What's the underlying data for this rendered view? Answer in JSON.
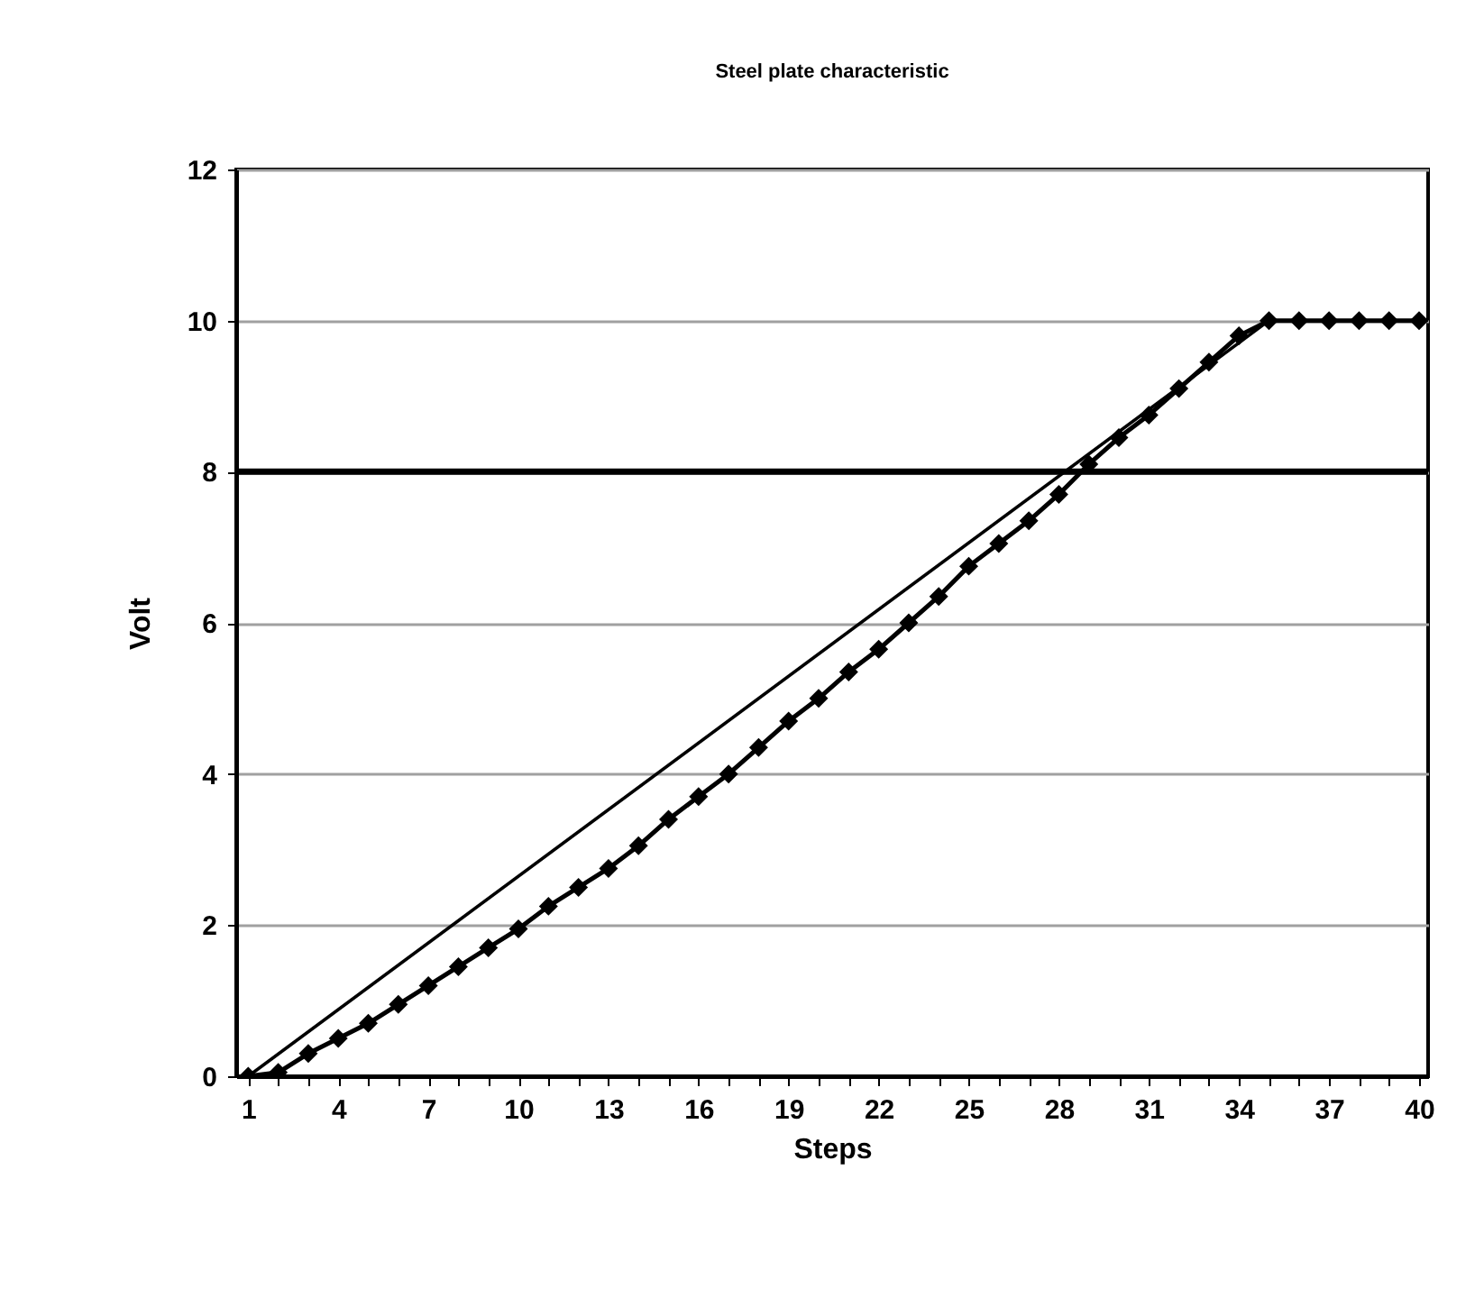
{
  "chart_data": {
    "type": "line",
    "title": "Steel plate characteristic",
    "xlabel": "Steps",
    "ylabel": "Volt",
    "x": [
      1,
      2,
      3,
      4,
      5,
      6,
      7,
      8,
      9,
      10,
      11,
      12,
      13,
      14,
      15,
      16,
      17,
      18,
      19,
      20,
      21,
      22,
      23,
      24,
      25,
      26,
      27,
      28,
      29,
      30,
      31,
      32,
      33,
      34,
      35,
      36,
      37,
      38,
      39,
      40
    ],
    "series": [
      {
        "color": "#000000",
        "marker": "diamond",
        "values": [
          0,
          0.05,
          0.3,
          0.5,
          0.7,
          0.95,
          1.2,
          1.45,
          1.7,
          1.95,
          2.25,
          2.5,
          2.75,
          3.05,
          3.4,
          3.7,
          4.0,
          4.35,
          4.7,
          5.0,
          5.35,
          5.65,
          6.0,
          6.35,
          6.75,
          7.05,
          7.35,
          7.7,
          8.1,
          8.45,
          8.75,
          9.1,
          9.45,
          9.8,
          10,
          10,
          10,
          10,
          10,
          10
        ]
      },
      {
        "color": "#000000",
        "marker": "none",
        "x": [
          1,
          35
        ],
        "values": [
          0,
          10
        ]
      }
    ],
    "xlim": [
      0.6,
      40.3
    ],
    "xticks": [
      1,
      {
        "value": 2,
        "label": null
      },
      {
        "value": 3,
        "label": null
      },
      4,
      {
        "value": 5,
        "label": null
      },
      {
        "value": 6,
        "label": null
      },
      7,
      {
        "value": 8,
        "label": null
      },
      {
        "value": 9,
        "label": null
      },
      10,
      {
        "value": 11,
        "label": null
      },
      {
        "value": 12,
        "label": null
      },
      13,
      {
        "value": 14,
        "label": null
      },
      {
        "value": 15,
        "label": null
      },
      16,
      {
        "value": 17,
        "label": null
      },
      {
        "value": 18,
        "label": null
      },
      19,
      {
        "value": 20,
        "label": null
      },
      {
        "value": 21,
        "label": null
      },
      22,
      {
        "value": 23,
        "label": null
      },
      {
        "value": 24,
        "label": null
      },
      25,
      {
        "value": 26,
        "label": null
      },
      {
        "value": 27,
        "label": null
      },
      28,
      {
        "value": 29,
        "label": null
      },
      {
        "value": 30,
        "label": null
      },
      31,
      {
        "value": 32,
        "label": null
      },
      {
        "value": 33,
        "label": null
      },
      34,
      {
        "value": 35,
        "label": null
      },
      {
        "value": 36,
        "label": null
      },
      37,
      {
        "value": 38,
        "label": null
      },
      {
        "value": 39,
        "label": null
      },
      40
    ],
    "ylim": [
      0,
      12
    ],
    "yticks": [
      0,
      2,
      4,
      6,
      8,
      10,
      12
    ],
    "grid": "y",
    "ref_lines": [
      {
        "axis": "y",
        "value": 8,
        "color": "#000000"
      }
    ]
  }
}
